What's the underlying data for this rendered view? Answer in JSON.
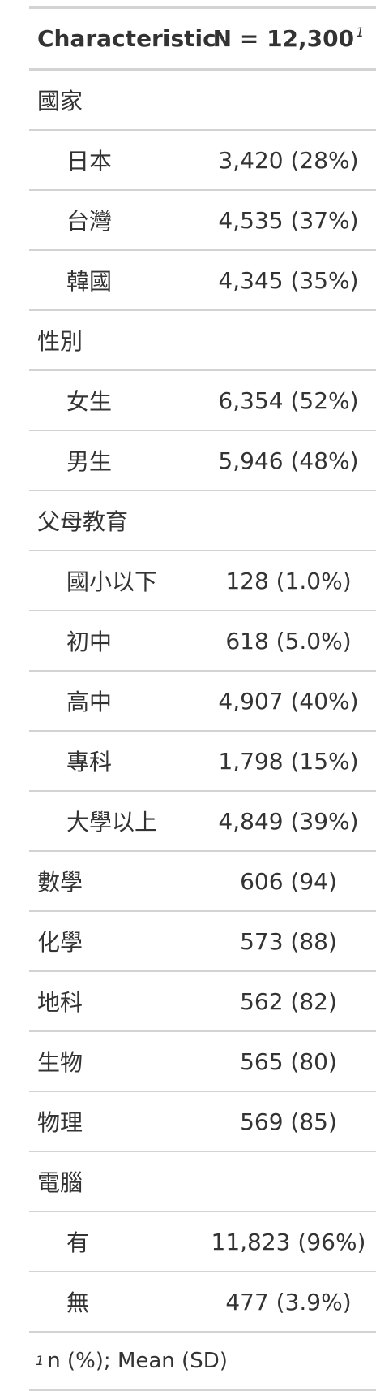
{
  "header": {
    "characteristic": "Characteristic",
    "n_label": "N = 12,300",
    "n_footnote_mark": "1"
  },
  "rows": [
    {
      "label": "國家",
      "value": "",
      "indent": false
    },
    {
      "label": "日本",
      "value": "3,420 (28%)",
      "indent": true
    },
    {
      "label": "台灣",
      "value": "4,535 (37%)",
      "indent": true
    },
    {
      "label": "韓國",
      "value": "4,345 (35%)",
      "indent": true
    },
    {
      "label": "性別",
      "value": "",
      "indent": false
    },
    {
      "label": "女生",
      "value": "6,354 (52%)",
      "indent": true
    },
    {
      "label": "男生",
      "value": "5,946 (48%)",
      "indent": true
    },
    {
      "label": "父母教育",
      "value": "",
      "indent": false
    },
    {
      "label": "國小以下",
      "value": "128 (1.0%)",
      "indent": true
    },
    {
      "label": "初中",
      "value": "618 (5.0%)",
      "indent": true
    },
    {
      "label": "高中",
      "value": "4,907 (40%)",
      "indent": true
    },
    {
      "label": "專科",
      "value": "1,798 (15%)",
      "indent": true
    },
    {
      "label": "大學以上",
      "value": "4,849 (39%)",
      "indent": true
    },
    {
      "label": "數學",
      "value": "606 (94)",
      "indent": false
    },
    {
      "label": "化學",
      "value": "573 (88)",
      "indent": false
    },
    {
      "label": "地科",
      "value": "562 (82)",
      "indent": false
    },
    {
      "label": "生物",
      "value": "565 (80)",
      "indent": false
    },
    {
      "label": "物理",
      "value": "569 (85)",
      "indent": false
    },
    {
      "label": "電腦",
      "value": "",
      "indent": false
    },
    {
      "label": "有",
      "value": "11,823 (96%)",
      "indent": true
    },
    {
      "label": "無",
      "value": "477 (3.9%)",
      "indent": true
    }
  ],
  "footnote": {
    "mark": "1",
    "text": "n (%); Mean (SD)"
  }
}
